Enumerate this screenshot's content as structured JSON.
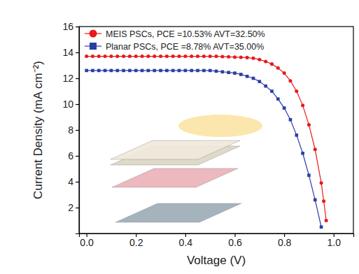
{
  "chart_data": {
    "type": "line",
    "x_label": "Voltage (V)",
    "y_label": "Current Density (mA cm⁻²)",
    "x": [
      0,
      0.025,
      0.05,
      0.075,
      0.1,
      0.125,
      0.15,
      0.175,
      0.2,
      0.225,
      0.25,
      0.275,
      0.3,
      0.325,
      0.35,
      0.375,
      0.4,
      0.425,
      0.45,
      0.475,
      0.5,
      0.525,
      0.55,
      0.575,
      0.6,
      0.625,
      0.65,
      0.675,
      0.7,
      0.725,
      0.75,
      0.775,
      0.8,
      0.825,
      0.85,
      0.875,
      0.9,
      0.925,
      0.95,
      0.96,
      0.97
    ],
    "series": [
      {
        "name": "MEIS PSCs, PCE =10.53% AVT=32.50%",
        "color": "#e8191a",
        "marker": "circle",
        "line_style": "solid",
        "values": [
          13.7,
          13.7,
          13.7,
          13.7,
          13.7,
          13.7,
          13.7,
          13.7,
          13.7,
          13.7,
          13.7,
          13.7,
          13.7,
          13.7,
          13.7,
          13.7,
          13.7,
          13.7,
          13.7,
          13.7,
          13.7,
          13.7,
          13.68,
          13.66,
          13.64,
          13.62,
          13.6,
          13.55,
          13.45,
          13.3,
          13.1,
          12.8,
          12.4,
          11.8,
          11.0,
          9.9,
          8.4,
          6.5,
          3.9,
          2.5,
          1.0
        ]
      },
      {
        "name": "Planar PSCs, PCE =8.78% AVT=35.00%",
        "color": "#2b3ea6",
        "marker": "square",
        "line_style": "solid",
        "values": [
          12.6,
          12.6,
          12.6,
          12.6,
          12.6,
          12.6,
          12.6,
          12.6,
          12.6,
          12.6,
          12.6,
          12.6,
          12.6,
          12.6,
          12.6,
          12.6,
          12.6,
          12.6,
          12.6,
          12.6,
          12.6,
          12.55,
          12.5,
          12.45,
          12.4,
          12.3,
          12.15,
          12.0,
          11.75,
          11.4,
          11.0,
          10.4,
          9.7,
          8.8,
          7.6,
          6.2,
          4.5,
          2.6,
          0.5,
          null,
          null
        ]
      }
    ],
    "xlim": [
      -0.03,
      1.08
    ],
    "ylim": [
      0,
      16
    ],
    "xticks": [
      {
        "value": 0,
        "label": "0.0"
      },
      0.2,
      0.4,
      0.6,
      0.8,
      {
        "value": 1,
        "label": "1.0"
      }
    ],
    "yticks": [
      2,
      4,
      6,
      8,
      10,
      12,
      14,
      16
    ],
    "legend": "top-left",
    "grid": false
  }
}
